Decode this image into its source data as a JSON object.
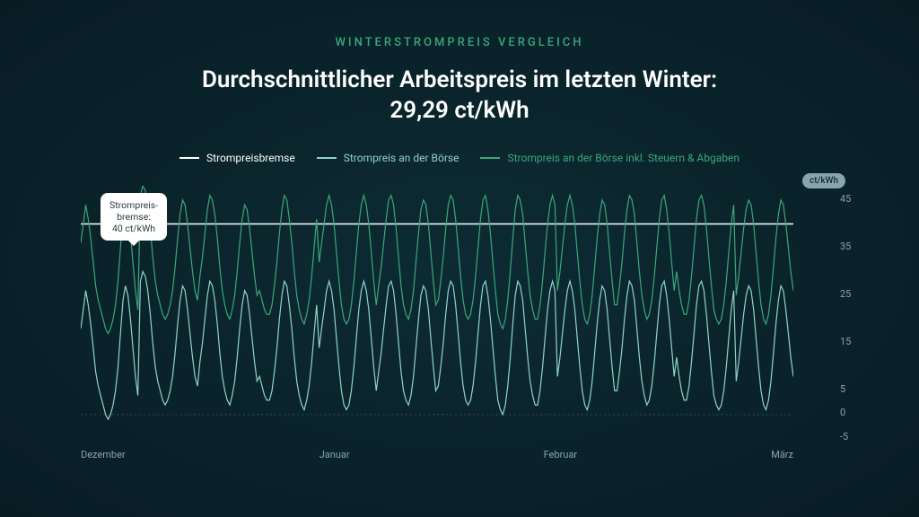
{
  "eyebrow": "WINTERSTROMPREIS VERGLEICH",
  "title": "Durchschnittlicher Arbeitspreis im letzten Winter:\n29,29 ct/kWh",
  "legend": {
    "brake": {
      "label": "Strompreisbremse",
      "color": "#ffffff"
    },
    "market": {
      "label": "Strompreis an der Börse",
      "color": "#8fd3c9"
    },
    "marketTax": {
      "label": "Strompreis an der Börse inkl. Steuern & Abgaben",
      "color": "#3aa77a"
    }
  },
  "chart": {
    "type": "line",
    "background": "transparent",
    "ylim": [
      -5,
      48
    ],
    "yticks": [
      45,
      35,
      25,
      15,
      5,
      0,
      -5
    ],
    "ytick_labels": [
      "45",
      "35",
      "25",
      "15",
      "5",
      "0",
      "-5"
    ],
    "y_unit": "ct/kWh",
    "xticks": [
      "Dezember",
      "Januar",
      "Februar",
      "März"
    ],
    "grid_color": "#2e4a52",
    "zero_line_style": "dotted",
    "brake_value": 40,
    "tooltip": "Strompreis-\nbremse:\n40 ct/kWh",
    "series": {
      "market": {
        "color": "#8fd3c9",
        "stroke_width": 1.2,
        "values": [
          18,
          22,
          26,
          23,
          19,
          14,
          9,
          6,
          4,
          2,
          0,
          -1,
          0,
          2,
          5,
          10,
          17,
          24,
          27,
          25,
          20,
          14,
          8,
          4,
          28,
          30,
          29,
          26,
          21,
          15,
          10,
          7,
          5,
          3,
          2,
          3,
          5,
          8,
          13,
          19,
          24,
          27,
          26,
          22,
          17,
          12,
          8,
          6,
          11,
          15,
          20,
          25,
          28,
          27,
          24,
          19,
          13,
          8,
          5,
          3,
          2,
          4,
          7,
          12,
          18,
          23,
          26,
          25,
          21,
          16,
          11,
          7,
          8,
          6,
          4,
          3,
          3,
          5,
          9,
          14,
          20,
          25,
          28,
          27,
          23,
          18,
          12,
          7,
          4,
          2,
          1,
          3,
          6,
          11,
          17,
          23,
          14,
          18,
          22,
          26,
          28,
          26,
          22,
          16,
          10,
          5,
          2,
          1,
          2,
          5,
          10,
          16,
          22,
          26,
          28,
          26,
          22,
          16,
          10,
          5,
          9,
          13,
          18,
          23,
          27,
          28,
          26,
          21,
          15,
          9,
          5,
          3,
          2,
          4,
          8,
          14,
          20,
          25,
          27,
          26,
          22,
          16,
          10,
          5,
          6,
          10,
          15,
          21,
          26,
          28,
          27,
          23,
          17,
          11,
          6,
          3,
          2,
          3,
          6,
          11,
          17,
          23,
          27,
          28,
          25,
          20,
          14,
          8,
          3,
          1,
          0,
          2,
          6,
          12,
          19,
          25,
          28,
          27,
          24,
          18,
          12,
          7,
          4,
          2,
          2,
          5,
          10,
          16,
          22,
          26,
          28,
          26,
          8,
          12,
          17,
          22,
          26,
          28,
          26,
          22,
          16,
          10,
          5,
          2,
          1,
          3,
          7,
          13,
          19,
          24,
          27,
          26,
          22,
          16,
          10,
          5,
          5,
          9,
          14,
          20,
          25,
          28,
          27,
          24,
          18,
          12,
          7,
          4,
          2,
          3,
          6,
          11,
          17,
          23,
          27,
          28,
          25,
          20,
          14,
          8,
          12,
          8,
          5,
          3,
          3,
          6,
          11,
          17,
          23,
          27,
          28,
          26,
          21,
          15,
          9,
          4,
          2,
          1,
          2,
          5,
          10,
          16,
          22,
          26,
          7,
          11,
          16,
          21,
          25,
          27,
          26,
          22,
          16,
          10,
          5,
          2,
          1,
          3,
          7,
          13,
          19,
          24,
          27,
          26,
          22,
          17,
          12,
          8
        ]
      },
      "marketTax": {
        "color": "#3aa77a",
        "stroke_width": 1.2,
        "values": [
          36,
          40,
          44,
          41,
          37,
          32,
          27,
          24,
          22,
          20,
          18,
          17,
          18,
          20,
          23,
          28,
          35,
          42,
          45,
          43,
          38,
          32,
          26,
          22,
          46,
          48,
          47,
          44,
          39,
          33,
          28,
          25,
          23,
          21,
          20,
          21,
          23,
          26,
          31,
          37,
          42,
          45,
          44,
          40,
          35,
          30,
          26,
          24,
          29,
          33,
          38,
          43,
          46,
          45,
          42,
          37,
          31,
          26,
          23,
          21,
          20,
          22,
          25,
          30,
          36,
          41,
          44,
          43,
          39,
          34,
          29,
          25,
          26,
          24,
          22,
          21,
          21,
          23,
          27,
          32,
          38,
          43,
          46,
          45,
          41,
          36,
          30,
          25,
          22,
          20,
          19,
          21,
          24,
          29,
          35,
          41,
          32,
          36,
          40,
          44,
          46,
          44,
          40,
          34,
          28,
          23,
          20,
          19,
          20,
          23,
          28,
          34,
          40,
          44,
          46,
          44,
          40,
          34,
          28,
          23,
          27,
          31,
          36,
          41,
          45,
          46,
          44,
          39,
          33,
          27,
          23,
          21,
          20,
          22,
          26,
          32,
          38,
          43,
          45,
          44,
          40,
          34,
          28,
          23,
          24,
          28,
          33,
          39,
          44,
          46,
          45,
          41,
          35,
          29,
          24,
          21,
          20,
          21,
          24,
          29,
          35,
          41,
          45,
          46,
          43,
          38,
          32,
          26,
          21,
          19,
          18,
          20,
          24,
          30,
          37,
          43,
          46,
          45,
          42,
          36,
          30,
          25,
          22,
          20,
          20,
          23,
          28,
          34,
          40,
          44,
          46,
          44,
          26,
          30,
          35,
          40,
          44,
          46,
          44,
          40,
          34,
          28,
          23,
          20,
          19,
          21,
          25,
          31,
          37,
          42,
          45,
          44,
          40,
          34,
          28,
          23,
          23,
          27,
          32,
          38,
          43,
          46,
          45,
          42,
          36,
          30,
          25,
          22,
          20,
          21,
          24,
          29,
          35,
          41,
          45,
          46,
          43,
          38,
          32,
          26,
          30,
          26,
          23,
          21,
          21,
          24,
          29,
          35,
          41,
          45,
          46,
          44,
          39,
          33,
          27,
          22,
          20,
          19,
          20,
          23,
          28,
          34,
          40,
          44,
          25,
          29,
          34,
          39,
          43,
          45,
          44,
          40,
          34,
          28,
          23,
          20,
          19,
          21,
          25,
          31,
          37,
          42,
          45,
          44,
          40,
          35,
          30,
          26
        ]
      }
    }
  },
  "colors": {
    "background_outer": "#081c24",
    "background_inner": "#0d2b33",
    "text_primary": "#ffffff",
    "text_muted": "#8aa5ad",
    "accent": "#3aa77a"
  }
}
